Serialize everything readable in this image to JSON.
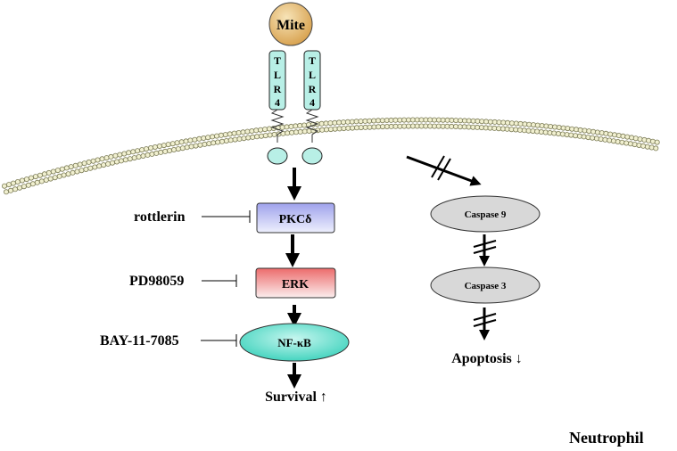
{
  "ligand": {
    "label": "Mite"
  },
  "receptors": [
    {
      "letters": [
        "T",
        "L",
        "R",
        "4"
      ]
    },
    {
      "letters": [
        "T",
        "L",
        "R",
        "4"
      ]
    }
  ],
  "pathway": {
    "pkc": "PKCδ",
    "erk": "ERK",
    "nfkb": "NF-κB",
    "outcome": "Survival ↑"
  },
  "inhibitors": {
    "rottlerin": "rottlerin",
    "pd": "PD98059",
    "bay": "BAY-11-7085"
  },
  "apoptosis_branch": {
    "caspase9": "Caspase 9",
    "caspase3": "Caspase 3",
    "outcome": "Apoptosis ↓"
  },
  "cell_label": "Neutrophil",
  "colors": {
    "mite_fill": "#e8b865",
    "tlr_fill": "#b8efe6",
    "pkc_fill": "#c5c7f2",
    "erk_fill": "#f07f7f",
    "nfkb_fill": "#6ce0cf",
    "caspase_fill": "#d8d8d8",
    "membrane_bead": "#f1f0d0"
  }
}
